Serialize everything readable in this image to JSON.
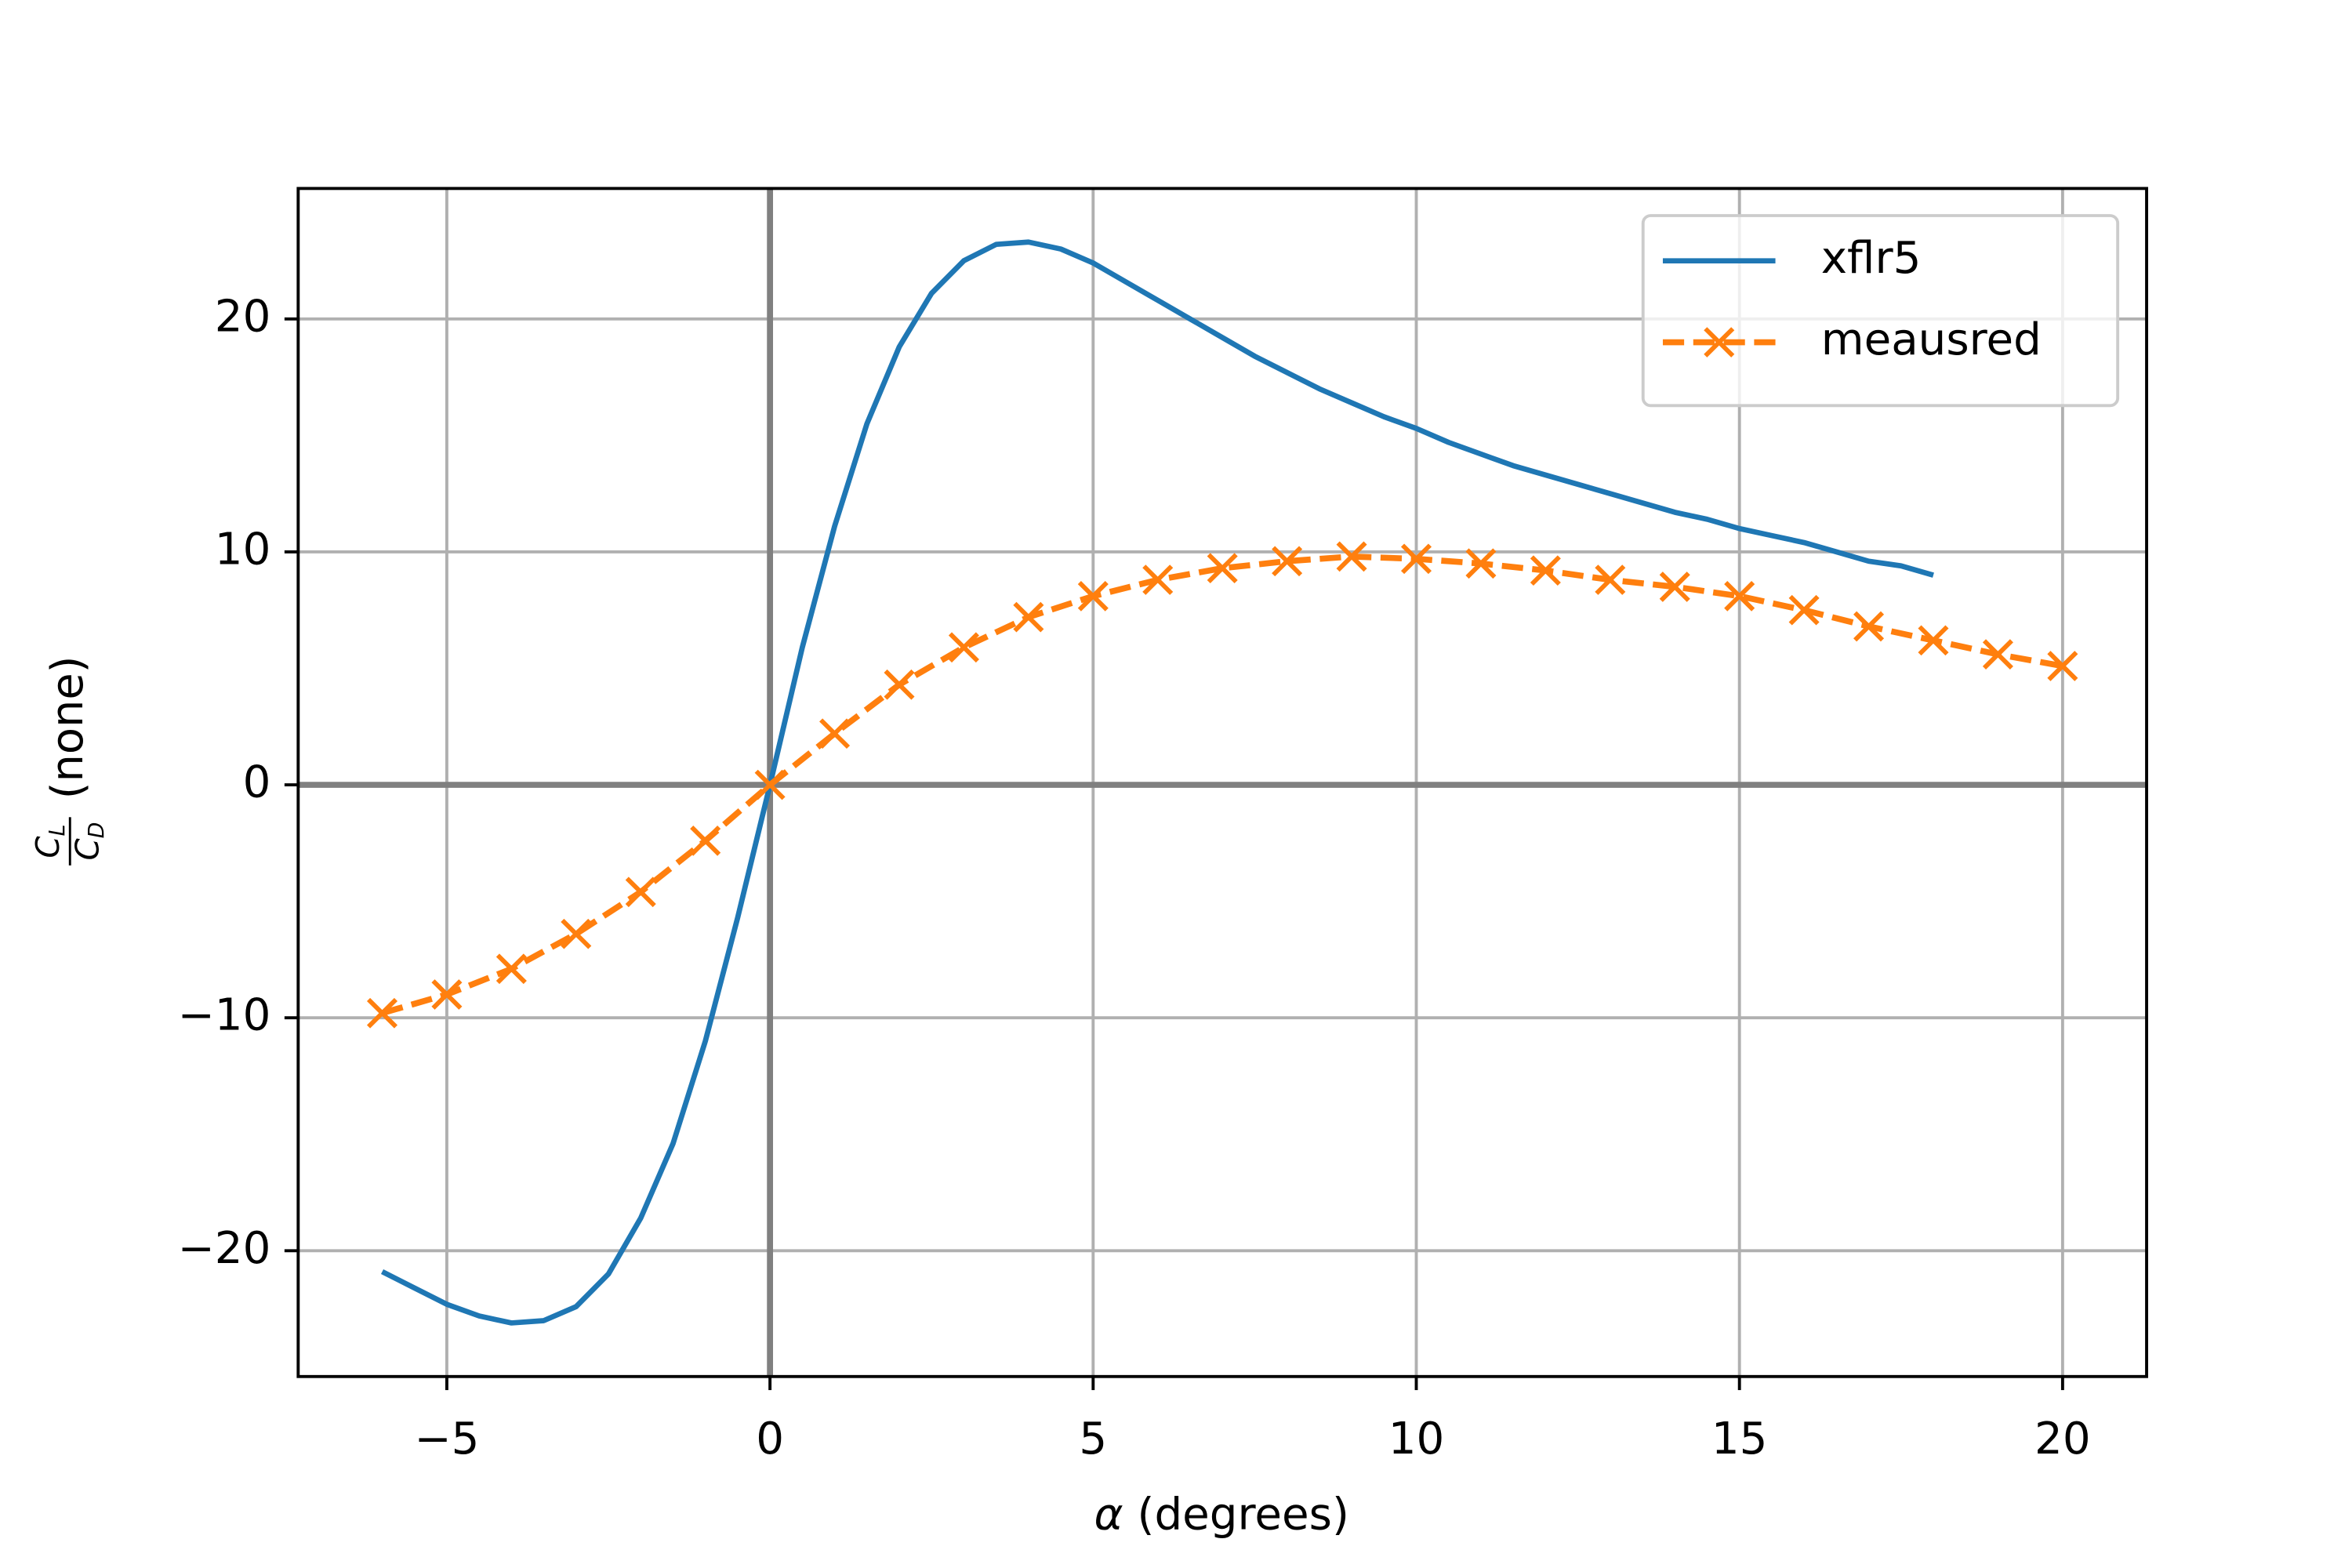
{
  "chart_data": {
    "type": "line",
    "xlabel": {
      "symbol": "α",
      "text": "(degrees)"
    },
    "ylabel": {
      "numerator": {
        "base": "C",
        "sub": "L"
      },
      "denominator": {
        "base": "C",
        "sub": "D"
      },
      "unit": "(none)"
    },
    "xlim": [
      -7.3,
      21.3
    ],
    "ylim": [
      -25.4,
      25.6
    ],
    "xticks": [
      {
        "value": -5,
        "label": "−5"
      },
      0,
      5,
      10,
      15,
      20
    ],
    "yticks": [
      {
        "value": -20,
        "label": "−20"
      },
      {
        "value": -10,
        "label": "−10"
      },
      0,
      10,
      20
    ],
    "grid": true,
    "zero_lines": true,
    "legend": "upper right",
    "series": [
      {
        "name": "xflr5",
        "color": "#1f77b4",
        "style": "solid",
        "marker": null,
        "x": [
          -6,
          -5.5,
          -5,
          -4.5,
          -4,
          -3.5,
          -3,
          -2.5,
          -2,
          -1.5,
          -1,
          -0.5,
          0,
          0.5,
          1,
          1.5,
          2,
          2.5,
          3,
          3.5,
          4,
          4.5,
          5,
          5.5,
          6,
          6.5,
          7,
          7.5,
          8,
          8.5,
          9,
          9.5,
          10,
          10.5,
          11,
          11.5,
          12,
          12.5,
          13,
          13.5,
          14,
          14.5,
          15,
          15.5,
          16,
          16.5,
          17,
          17.5,
          18
        ],
        "values": [
          -20.9,
          -21.6,
          -22.3,
          -22.8,
          -23.1,
          -23.0,
          -22.4,
          -21.0,
          -18.6,
          -15.4,
          -11.0,
          -5.7,
          0,
          5.9,
          11.1,
          15.5,
          18.8,
          21.1,
          22.5,
          23.2,
          23.3,
          23.0,
          22.4,
          21.6,
          20.8,
          20.0,
          19.2,
          18.4,
          17.7,
          17.0,
          16.4,
          15.8,
          15.3,
          14.7,
          14.2,
          13.7,
          13.3,
          12.9,
          12.5,
          12.1,
          11.7,
          11.4,
          11.0,
          10.7,
          10.4,
          10.0,
          9.6,
          9.4,
          9.0
        ]
      },
      {
        "name": "meausred",
        "color": "#ff7f0e",
        "style": "dashed",
        "marker": "x",
        "x": [
          -6,
          -5,
          -4,
          -3,
          -2,
          -1,
          0,
          1,
          2,
          3,
          4,
          5,
          6,
          7,
          8,
          9,
          10,
          11,
          12,
          13,
          14,
          15,
          16,
          17,
          18,
          19,
          20
        ],
        "values": [
          -9.8,
          -9.0,
          -7.9,
          -6.4,
          -4.6,
          -2.4,
          0,
          2.2,
          4.3,
          5.9,
          7.2,
          8.1,
          8.8,
          9.3,
          9.6,
          9.8,
          9.7,
          9.5,
          9.2,
          8.8,
          8.5,
          8.1,
          7.5,
          6.8,
          6.2,
          5.6,
          5.1
        ]
      }
    ]
  }
}
